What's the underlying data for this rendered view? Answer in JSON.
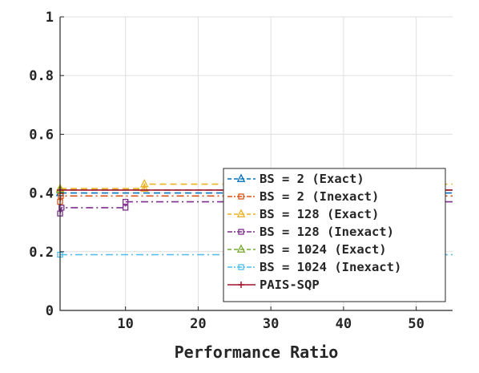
{
  "chart_data": {
    "type": "line",
    "step": true,
    "title": "",
    "xlabel": "Performance Ratio",
    "ylabel": "",
    "xlim": [
      1,
      55
    ],
    "ylim": [
      0,
      1
    ],
    "xticks": [
      10,
      20,
      30,
      40,
      50
    ],
    "xtick_labels": [
      "10",
      "20",
      "30",
      "40",
      "50"
    ],
    "yticks": [
      0,
      0.2,
      0.4,
      0.6,
      0.8,
      1
    ],
    "ytick_labels": [
      "0",
      "0.2",
      "0.4",
      "0.6",
      "0.8",
      "1"
    ],
    "grid": true,
    "legend_position": "bottom-right",
    "series": [
      {
        "name": "BS = 2 (Exact)",
        "color": "#0072BD",
        "dash": "8,5",
        "marker": "triangle",
        "points": [
          [
            1,
            0.4
          ],
          [
            55,
            0.4
          ]
        ]
      },
      {
        "name": "BS = 2 (Inexact)",
        "color": "#D95319",
        "dash": "9,4,2,4",
        "marker": "square",
        "points": [
          [
            1,
            0.37
          ],
          [
            1.1,
            0.39
          ],
          [
            55,
            0.39
          ]
        ]
      },
      {
        "name": "BS = 128 (Exact)",
        "color": "#EDB120",
        "dash": "8,5",
        "marker": "triangle",
        "points": [
          [
            1,
            0.415
          ],
          [
            12.6,
            0.415
          ],
          [
            12.6,
            0.43
          ],
          [
            55,
            0.43
          ]
        ]
      },
      {
        "name": "BS = 128 (Inexact)",
        "color": "#7E2F8E",
        "dash": "9,4,2,4",
        "marker": "square",
        "points": [
          [
            1,
            0.33
          ],
          [
            1.2,
            0.35
          ],
          [
            10,
            0.35
          ],
          [
            10,
            0.37
          ],
          [
            55,
            0.37
          ]
        ]
      },
      {
        "name": "BS = 1024 (Exact)",
        "color": "#77AC30",
        "dash": "8,5",
        "marker": "triangle",
        "points": [
          [
            1,
            0.41
          ],
          [
            55,
            0.41
          ]
        ]
      },
      {
        "name": "BS = 1024 (Inexact)",
        "color": "#4DBEEE",
        "dash": "9,4,2,4",
        "marker": "square",
        "points": [
          [
            1,
            0.19
          ],
          [
            55,
            0.19
          ]
        ]
      },
      {
        "name": "PAIS-SQP",
        "color": "#A2142F",
        "dash": "",
        "marker": "plus",
        "points": [
          [
            1,
            0.41
          ],
          [
            55,
            0.41
          ]
        ]
      }
    ]
  }
}
